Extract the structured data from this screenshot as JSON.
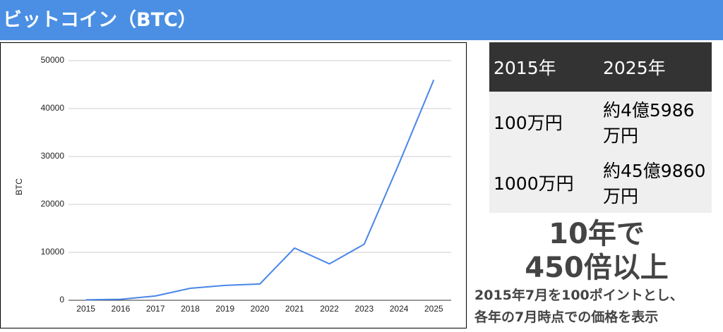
{
  "header": {
    "title": "ビットコイン（BTC）"
  },
  "chart_data": {
    "type": "line",
    "y_label": "BTC",
    "categories": [
      "2015",
      "2016",
      "2017",
      "2018",
      "2019",
      "2020",
      "2021",
      "2022",
      "2023",
      "2024",
      "2025"
    ],
    "values": [
      100,
      200,
      900,
      2500,
      3100,
      3400,
      10900,
      7600,
      11700,
      28500,
      45986
    ],
    "color": "#4a86e8",
    "ylim": [
      0,
      50000
    ],
    "yticks": [
      0,
      10000,
      20000,
      30000,
      40000,
      50000
    ],
    "grid": true
  },
  "table": {
    "header": [
      "2015年",
      "2025年"
    ],
    "rows": [
      [
        "100万円",
        "約4億5986万円"
      ],
      [
        "1000万円",
        "約45億9860万円"
      ]
    ]
  },
  "callout": [
    "10年で",
    "450倍以上"
  ],
  "note": [
    "2015年7月を100ポイントとし、",
    "各年の7月時点での価格を表示"
  ]
}
